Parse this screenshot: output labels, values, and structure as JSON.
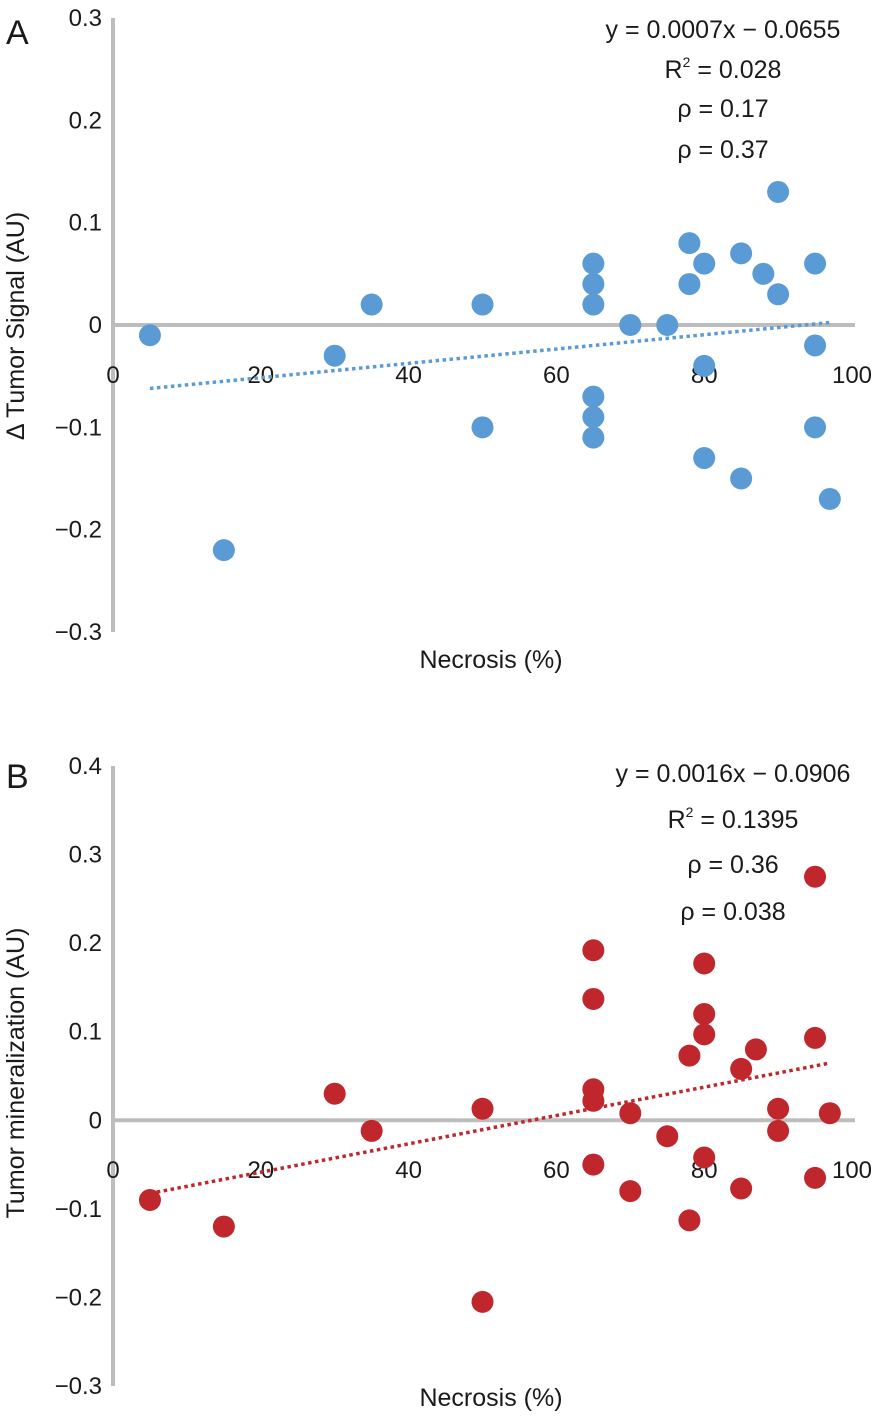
{
  "chart_data": [
    {
      "type": "scatter",
      "panel_label": "A",
      "title": "",
      "xlabel": "Necrosis (%)",
      "ylabel": "Δ Tumor Signal (AU)",
      "xlim": [
        0,
        100
      ],
      "ylim": [
        -0.3,
        0.3
      ],
      "xticks": [
        "0",
        "20",
        "40",
        "60",
        "80",
        "100"
      ],
      "xtick_values": [
        0,
        20,
        40,
        60,
        80,
        100
      ],
      "yticks": [
        "0.3",
        "0.2",
        "0.1",
        "0",
        "−0.1",
        "−0.2",
        "−0.3"
      ],
      "ytick_values": [
        0.3,
        0.2,
        0.1,
        0,
        -0.1,
        -0.2,
        -0.3
      ],
      "color": "#5b9bd5",
      "points": [
        {
          "x": 5,
          "y": -0.01
        },
        {
          "x": 15,
          "y": -0.22
        },
        {
          "x": 30,
          "y": -0.03
        },
        {
          "x": 35,
          "y": 0.02
        },
        {
          "x": 50,
          "y": 0.02
        },
        {
          "x": 50,
          "y": -0.1
        },
        {
          "x": 65,
          "y": 0.06
        },
        {
          "x": 65,
          "y": 0.04
        },
        {
          "x": 65,
          "y": 0.02
        },
        {
          "x": 65,
          "y": -0.07
        },
        {
          "x": 65,
          "y": -0.09
        },
        {
          "x": 65,
          "y": -0.11
        },
        {
          "x": 70,
          "y": 0.0
        },
        {
          "x": 75,
          "y": 0.0
        },
        {
          "x": 78,
          "y": 0.08
        },
        {
          "x": 78,
          "y": 0.04
        },
        {
          "x": 80,
          "y": 0.06
        },
        {
          "x": 80,
          "y": -0.04
        },
        {
          "x": 80,
          "y": -0.13
        },
        {
          "x": 85,
          "y": 0.07
        },
        {
          "x": 85,
          "y": -0.15
        },
        {
          "x": 88,
          "y": 0.05
        },
        {
          "x": 90,
          "y": 0.13
        },
        {
          "x": 90,
          "y": 0.03
        },
        {
          "x": 95,
          "y": 0.06
        },
        {
          "x": 95,
          "y": -0.02
        },
        {
          "x": 95,
          "y": -0.1
        },
        {
          "x": 97,
          "y": -0.17
        }
      ],
      "trendline": {
        "slope": 0.0007,
        "intercept": -0.0655,
        "x_range": [
          5,
          97
        ]
      },
      "annotations": {
        "equation": "y = 0.0007x − 0.0655",
        "r2_prefix": "R",
        "r2_sup": "2",
        "r2_value": " = 0.028",
        "rho1": "ρ = 0.17",
        "rho2": "ρ = 0.37"
      }
    },
    {
      "type": "scatter",
      "panel_label": "B",
      "title": "",
      "xlabel": "Necrosis (%)",
      "ylabel": "Tumor mineralization (AU)",
      "xlim": [
        0,
        100
      ],
      "ylim": [
        -0.3,
        0.4
      ],
      "xticks": [
        "0",
        "20",
        "40",
        "60",
        "80",
        "100"
      ],
      "xtick_values": [
        0,
        20,
        40,
        60,
        80,
        100
      ],
      "yticks": [
        "0.4",
        "0.3",
        "0.2",
        "0.1",
        "0",
        "−0.1",
        "−0.2",
        "−0.3"
      ],
      "ytick_values": [
        0.4,
        0.3,
        0.2,
        0.1,
        0,
        -0.1,
        -0.2,
        -0.3
      ],
      "color": "#c0272d",
      "points": [
        {
          "x": 5,
          "y": -0.09
        },
        {
          "x": 15,
          "y": -0.12
        },
        {
          "x": 30,
          "y": 0.03
        },
        {
          "x": 35,
          "y": -0.012
        },
        {
          "x": 50,
          "y": 0.013
        },
        {
          "x": 50,
          "y": -0.205
        },
        {
          "x": 65,
          "y": 0.192
        },
        {
          "x": 65,
          "y": 0.137
        },
        {
          "x": 65,
          "y": 0.035
        },
        {
          "x": 65,
          "y": 0.022
        },
        {
          "x": 65,
          "y": -0.05
        },
        {
          "x": 70,
          "y": 0.008
        },
        {
          "x": 70,
          "y": -0.08
        },
        {
          "x": 75,
          "y": -0.018
        },
        {
          "x": 78,
          "y": 0.073
        },
        {
          "x": 78,
          "y": -0.113
        },
        {
          "x": 80,
          "y": 0.177
        },
        {
          "x": 80,
          "y": 0.12
        },
        {
          "x": 80,
          "y": 0.097
        },
        {
          "x": 80,
          "y": -0.042
        },
        {
          "x": 85,
          "y": 0.058
        },
        {
          "x": 85,
          "y": -0.077
        },
        {
          "x": 87,
          "y": 0.08
        },
        {
          "x": 90,
          "y": 0.013
        },
        {
          "x": 90,
          "y": -0.012
        },
        {
          "x": 95,
          "y": 0.275
        },
        {
          "x": 95,
          "y": 0.093
        },
        {
          "x": 95,
          "y": -0.065
        },
        {
          "x": 97,
          "y": 0.008
        }
      ],
      "trendline": {
        "slope": 0.0016,
        "intercept": -0.0906,
        "x_range": [
          5,
          97
        ]
      },
      "annotations": {
        "equation": "y = 0.0016x − 0.0906",
        "r2_prefix": "R",
        "r2_sup": "2",
        "r2_value": " = 0.1395",
        "rho1": "ρ = 0.36",
        "rho2": "ρ = 0.038"
      }
    }
  ]
}
